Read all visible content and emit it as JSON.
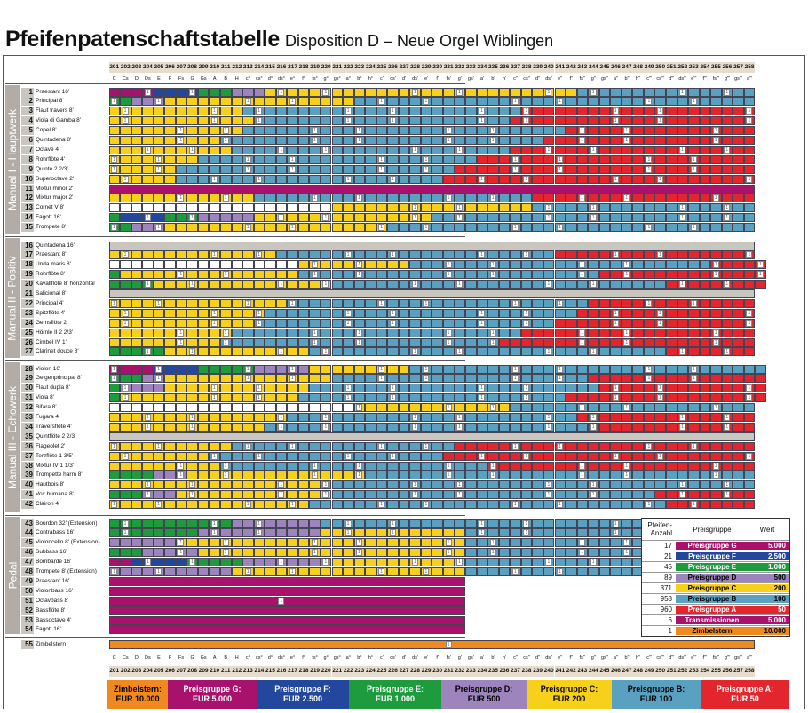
{
  "title": {
    "main": "Pfeifenpatenschaftstabelle",
    "sub": "Disposition D – Neue Orgel Wiblingen"
  },
  "columns": {
    "numbers": [
      "201",
      "202",
      "203",
      "204",
      "205",
      "206",
      "207",
      "208",
      "209",
      "210",
      "211",
      "212",
      "213",
      "214",
      "215",
      "216",
      "217",
      "218",
      "219",
      "220",
      "221",
      "222",
      "223",
      "224",
      "225",
      "226",
      "227",
      "228",
      "229",
      "230",
      "231",
      "232",
      "233",
      "234",
      "235",
      "236",
      "237",
      "238",
      "239",
      "240",
      "241",
      "242",
      "243",
      "244",
      "245",
      "246",
      "247",
      "248",
      "249",
      "250",
      "251",
      "252",
      "253",
      "254",
      "255",
      "256",
      "257",
      "258"
    ],
    "notes": [
      "C",
      "Cs",
      "D",
      "Ds",
      "E",
      "F",
      "Fs",
      "G",
      "Gs",
      "A",
      "B",
      "H",
      "c°",
      "cs°",
      "d°",
      "ds°",
      "e°",
      "f°",
      "fs°",
      "g°",
      "gs°",
      "a°",
      "b°",
      "h°",
      "c'",
      "cs'",
      "d'",
      "ds'",
      "e'",
      "f'",
      "fs'",
      "g'",
      "gs'",
      "a'",
      "b'",
      "h'",
      "c''",
      "cs''",
      "d''",
      "ds''",
      "e''",
      "f''",
      "fs''",
      "g''",
      "gs''",
      "a''",
      "b''",
      "h''",
      "c'''",
      "cs'''",
      "d'''",
      "ds'''",
      "e'''",
      "f'''",
      "fs'''",
      "g'''",
      "gs'''",
      "a'''"
    ]
  },
  "colors": {
    "G": "#a8126c",
    "F": "#23479c",
    "E": "#1e9b3c",
    "D": "#9d84bd",
    "C": "#f7d01b",
    "B": "#5aa0c0",
    "A": "#e3262d",
    "T": "#a8126c",
    "Z": "#f18a1e",
    "W": "#ffffff"
  },
  "divisions": [
    {
      "label": "Manual I - Hauptwerk"
    },
    {
      "label": "Manual II - Positiv"
    },
    {
      "label": "Manual III - Echowerk"
    },
    {
      "label": "Pedal"
    }
  ],
  "stops": [
    {
      "num": "1",
      "name": "Praestant 16'"
    },
    {
      "num": "2",
      "name": "Principal 8'"
    },
    {
      "num": "3",
      "name": "Flaut travers 8'"
    },
    {
      "num": "4",
      "name": "Viola di Gamba 8'"
    },
    {
      "num": "5",
      "name": "Copel 8'"
    },
    {
      "num": "6",
      "name": "Quintadena 8'"
    },
    {
      "num": "7",
      "name": "Octave 4'"
    },
    {
      "num": "8",
      "name": "Rohrflöte 4'"
    },
    {
      "num": "9",
      "name": "Quinte 2 2/3'"
    },
    {
      "num": "10",
      "name": "Superoctave 2'"
    },
    {
      "num": "11",
      "name": "Mixtur minor 2'"
    },
    {
      "num": "12",
      "name": "Mixtur major 2'"
    },
    {
      "num": "13",
      "name": "Cornet V 8'"
    },
    {
      "num": "14",
      "name": "Fagott 16'"
    },
    {
      "num": "15",
      "name": "Trompete 8'"
    },
    {
      "num": "16",
      "name": "Quintadena 16'"
    },
    {
      "num": "17",
      "name": "Praestant 8'"
    },
    {
      "num": "18",
      "name": "Unda maris 8'"
    },
    {
      "num": "19",
      "name": "Rohrflöte 8'"
    },
    {
      "num": "20",
      "name": "Kavallflöte 8' horizontal"
    },
    {
      "num": "21",
      "name": "Salicional 8'"
    },
    {
      "num": "22",
      "name": "Principal 4'"
    },
    {
      "num": "23",
      "name": "Spitzflöte 4'"
    },
    {
      "num": "24",
      "name": "Gemsflöte 2'"
    },
    {
      "num": "25",
      "name": "Hörnle II 2 2/3'"
    },
    {
      "num": "26",
      "name": "Cimbel IV 1'"
    },
    {
      "num": "27",
      "name": "Clarinet douce 8'"
    },
    {
      "num": "28",
      "name": "Violon 16'"
    },
    {
      "num": "29",
      "name": "Geigenprincipal 8'"
    },
    {
      "num": "30",
      "name": "Flaut dupla 8'"
    },
    {
      "num": "31",
      "name": "Viola 8'"
    },
    {
      "num": "32",
      "name": "Bifara 8'"
    },
    {
      "num": "33",
      "name": "Fugara 4'"
    },
    {
      "num": "34",
      "name": "Traversflöte 4'"
    },
    {
      "num": "35",
      "name": "Quintflöte 2 2/3'"
    },
    {
      "num": "36",
      "name": "Flageolet 2'"
    },
    {
      "num": "37",
      "name": "Terzflöte 1 3/5'"
    },
    {
      "num": "38",
      "name": "Mixtur IV 1 1/3'"
    },
    {
      "num": "39",
      "name": "Trompette harm 8'"
    },
    {
      "num": "40",
      "name": "Hautbois 8'"
    },
    {
      "num": "41",
      "name": "Vox humana 8'"
    },
    {
      "num": "42",
      "name": "Clairon 4'"
    },
    {
      "num": "43",
      "name": "Bourdon 32' (Extension)"
    },
    {
      "num": "44",
      "name": "Contrabass 16'"
    },
    {
      "num": "45",
      "name": "Violoncello 8' (Extension)"
    },
    {
      "num": "46",
      "name": "Subbass 16'"
    },
    {
      "num": "47",
      "name": "Bombarde 16'"
    },
    {
      "num": "48",
      "name": "Trompete 8' (Extension)"
    },
    {
      "num": "49",
      "name": "Praestant 16'"
    },
    {
      "num": "50",
      "name": "Violonbass 16'"
    },
    {
      "num": "51",
      "name": "Octavbass 8'"
    },
    {
      "num": "52",
      "name": "Bassflöte 8'"
    },
    {
      "num": "53",
      "name": "Bassoctave 4'"
    },
    {
      "num": "54",
      "name": "Fagott 16'"
    },
    {
      "num": "55",
      "name": "Zimbelstern"
    }
  ],
  "legend": {
    "head_count": "Pfeifen-Anzahl",
    "head_group": "Preisgruppe",
    "head_value": "Wert",
    "rows": [
      {
        "count": "17",
        "group": "Preisgruppe G",
        "value": "5.000",
        "color": "#a8126c",
        "text": "#ffffff"
      },
      {
        "count": "21",
        "group": "Preisgruppe F",
        "value": "2.500",
        "color": "#23479c",
        "text": "#ffffff"
      },
      {
        "count": "45",
        "group": "Preisgruppe E",
        "value": "1.000",
        "color": "#1e9b3c",
        "text": "#ffffff"
      },
      {
        "count": "89",
        "group": "Preisgruppe D",
        "value": "500",
        "color": "#9d84bd",
        "text": "#000000"
      },
      {
        "count": "371",
        "group": "Preisgruppe C",
        "value": "200",
        "color": "#f7d01b",
        "text": "#000000"
      },
      {
        "count": "958",
        "group": "Preisgruppe B",
        "value": "100",
        "color": "#5aa0c0",
        "text": "#000000"
      },
      {
        "count": "960",
        "group": "Preisgruppe A",
        "value": "50",
        "color": "#e3262d",
        "text": "#ffffff"
      },
      {
        "count": "6",
        "group": "Transmissionen",
        "value": "5.000",
        "color": "#a8126c",
        "text": "#ffffff"
      },
      {
        "count": "1",
        "group": "Zimbelstern",
        "value": "10.000",
        "color": "#f18a1e",
        "text": "#000000"
      }
    ]
  },
  "price_boxes": [
    {
      "line1": "Zimbelstern:",
      "line2": "EUR 10.000",
      "color": "#f18a1e",
      "text": "#000000"
    },
    {
      "line1": "Preisgruppe G:",
      "line2": "EUR 5.000",
      "color": "#a8126c",
      "text": "#ffffff"
    },
    {
      "line1": "Preisgruppe F:",
      "line2": "EUR 2.500",
      "color": "#23479c",
      "text": "#ffffff"
    },
    {
      "line1": "Preisgruppe E:",
      "line2": "EUR 1.000",
      "color": "#1e9b3c",
      "text": "#ffffff"
    },
    {
      "line1": "Preisgruppe D:",
      "line2": "EUR 500",
      "color": "#9d84bd",
      "text": "#000000"
    },
    {
      "line1": "Preisgruppe C:",
      "line2": "EUR 200",
      "color": "#f7d01b",
      "text": "#000000"
    },
    {
      "line1": "Preisgruppe B:",
      "line2": "EUR 100",
      "color": "#5aa0c0",
      "text": "#000000"
    },
    {
      "line1": "Preisgruppe A:",
      "line2": "EUR 50",
      "color": "#e3262d",
      "text": "#ffffff"
    }
  ],
  "patterns": {
    "r1": "GGGGFFFFEEEDDDCCCCCCCCCCCCCCCCCCCCCCCCCCCCBBBBBBBBBBBBBBBB",
    "r2": "EEDDDCCCCCCCCCCCCCCCCCBBBBBBBBBBBBBBBBBBBBBBBBBBBBBBBBBBBB",
    "r3": "CCCCCCCCCCCCBBBBBBBBBBBBBBBBBBBBBBBBBAAAAAAAAAAAAAAAAAAAAA",
    "r4": "CCCCCCCCCCCCCBBBBBBBBBBBBBBBBBBBBBBBAAAAAAAAAAAAAAAAAAAAAA",
    "r5": "CCCCCCCCCCCCBBBBBBBBBBBBBBBBBBBBBBBBBBBBBAAAAAAAAAAAAAAAAA",
    "r6": "CCCCCCCCCCBBBBBBBBBBBBBBBBBBBBBBBBBBBBBAAAAAAAAAAAAAAAAAAA",
    "r7": "CCCCCCCCCCCBBBBBBBBBBBBBBBBBBBBBBBBBAAAAAAAAAAAAAAAAAAAAAA",
    "r8": "CCCCCCCCBBBBBBBBBBBBBBBBBBBBBBBBBAAAAAAAAAAAAAAAAAAAAAAAAA",
    "r9": "CCCCCCBBBBBBBBBBBBBBBBBBBBBBBBBAAAAAAAAAAAAAAAAAAAAAAAAAAA",
    "r10": "CCCCCCBBBBBBBBBBBBBBBBBBBBBBBBAAAAAAAAAAAAAAAAAAAAAAAAAAAA",
    "r11": "TTTTTTTTTTTTTTTTTTTTTTTTTTTTTTTTTTTTTTTTTTTTTTTTTTTTTTTTTT",
    "r12": "CCCCCCCCCCCCCBBBBBBBBBBBBBBBBBBBBBBBBBAAAAAAAAAAAAAAAAAAAA",
    "r13": "WWWWWWWWWWWWWWWWWWWWCCCCCCCCCCCCCCCCCCBBBBBBBBBBBBBBBBBBBB",
    "r14": "EFFFFEEEDDDDDCCCCCCCCCCCCCCCCBBBBBBBBBBBBBBBBBBBBBBBBBBBBB",
    "r15": "EEDDDCCCCCCCCCCCCCCCCCCCCBBBBBBBBBBBBBBBBBBBBBBBBBBBBBBBBB",
    "r16": "WWWWWWWWWWWWWWWWWWWWWWWWWWWWWWWWWWWWWWWWWWWWWWWWWWWWWWWWWW",
    "r17": "CCCCCCCCCCCCCCCBBBBBBBBBBBBBBBBBBBBBBBBBAAAAAAAAAAAAAAAAAA",
    "r18": "WWWWWWWWWWWWWWWWWCCCCCCCCCCBBBBBBBBBBBBBBBBBBBBBBBBBBBAAAAA",
    "r19": "ECCCCCCCCCCCCCCCCBBBBBBBBBBBBBBBBBBBBBBBBBBBAAAAAAAAAAAAAAA",
    "r20": "EEEECCCCCCCCCCCCCCCCBBBBBBBBBBBBBBBBBBBBBBBBBBBBBBAAAAAAAAA",
    "r21": "WWWWWWWWWWWWWWWWWWWWWWWWWWWWWWWWWWWWWWWWWWWWWWWWWWWWWWWWWW",
    "r22": "CCCCCCCCCCCCCCCCBBBBBBBBBBBBBBBBBBBBBBBBBBBAAAAAAAAAAAAAAA",
    "r23": "CCCCCCCCCCCCCCBBBBBBBBBBBBBBBBBBBBBBBBBBBBAAAAAAAAAAAAAAAA",
    "r24": "CCCCCCCCCCCCCBBBBBBBBBBBBBBBBBBBBBBBBBBBAAAAAAAAAAAAAAAAAA",
    "r25": "CCCCCCCCCCCBBBBBBBBBBBBBBBBBBBBBBBBBBAAAAAAAAAAAAAAAAAAAAA",
    "r26": "CCCCCCCCCCBBBBBBBBBBBBBBBBBBBBBBBBBAAAAAAAAAAAAAAAAAAAAAAA",
    "r27": "EEEEECCCCCCCCCCCCCBBBBBBBBBBBBBBBBBBBBBBBBBBBBBBBBAAAAAAAA",
    "r28": "GGGGFFFFEEEEEDDDDDCCCCCCCCCBBBBBBBBBBBBBBBBBBBBBBBBBBBBBBBB",
    "r29": "EEEDDCCCCCCCCCCCCCCCBBBBBBBBBBBBBBBBBBBBBBBAAAAAAAAAAAAAAAA",
    "r30": "EDDDDCCCCCCCCCCCCCBBBBBBBBBBBBBBBBBBBBBBBBBBAAAAAAAAAAAAAAA",
    "r31": "ECCCCCCCCCCCCCCCCBBBBBBBBBBBBBBBBBBBBBBBBAAAAAAAAAAAAAAAAAA",
    "r32": "WWWWWWWWWWWWWWWWWWWWWWCCCCCCCCCCCCCCBBBBBBBBBBBBBBBBBBBBBB",
    "r33": "CCCCCCCCCCCCCCCCBBBBBBBBBBBBBBBBBBBBBBBBBBAAAAAAAAAAAAAAAA",
    "r34": "CCCCCCCCCCCCCCBBBBBBBBBBBBBBBBBBBBBBBBBBBBBAAAAAAAAAAAAAAA",
    "r35": "WWWWWWWWWWWWWWWWWWWWWWWWWWWWWWWWWWWWWWWWWWWWWWWWWWWWWWWWWW",
    "r36": "CCCCCCCCCCCBBBBBBBBBBBBBBBBBBBBAAAAAAAAAAAAAAAAAAAAAAAAAAA",
    "r37": "CCCCCCCCCBBBBBBBBBBBBBBBBBBBBBAAAAAAAAAAAAAAAAAAAAAAAAAAAA",
    "r38": "CCCCCCCCCCBBBBBBBBBBBBBBBBBBBBBBBBAAAAAAAAAAAAAAAAAAAAAAAA",
    "r39": "EEEEDDDCCCCCCCCCCCCCCCCBBBBBBBBBBBBBBBBBBBBBBBBBBBBBBBBBBB",
    "r40": "CCCCCCCCCCCCCCCCCCCBBBBBBBBBBBBBBBBBBBBBBBBBBBBBBBBBBBBBBB",
    "r41": "EEEDDDCCCCCCCCCCCCCCBBBBBBBBBBBBBBBBBBBBBBBBBBBBBAAAAAAAAA",
    "r42": "CCCCCCCCCCCCCCCCCCBBBBBBBBBBBBBBBBBBBBBBBBBBBBBBBBAAAAAAAA",
    "r43": "EEEEEEEEEEEDDDDDDDDBBBBBBBBBBBBBBBBBBBBBBBBBBBBBBBBBBBBBBB",
    "r44": "EEEEEEEEDDDDDDDDDDDCCCCCCCCCCCCCBBBBBBBBBBBBBBBBBBBBBBBBBB",
    "r45": "DDDDDDCCCCCCCCCCCCCCCCCCCCCCCCCCBBBBBBBBBBBBBBBBBBBBBBBBBB",
    "r46": "EEEDDDDDCCCCCCCCCCCCCCCCCCCCCCCCBBBBBBBBBBBBBBBBBBBBBBBBBB",
    "r47": "GGFFFFFEEEEEDDDDDDDDCCCCCCCCCCCCBBBBBBBBBBBBBBBBBBBBBBBBBB",
    "r48": "DDDDDDDDDDDCCCCCCCCCCCCCCCCCCCCCBBBBBBBBBBBBBBBBBBBBBBBBBB",
    "r55": "ZZZZZZZZZZZZZZZZZZZZZZZZZZZZZZZZZZZZZZZZZZZZZZZZZZZZZZZZZZ"
  }
}
